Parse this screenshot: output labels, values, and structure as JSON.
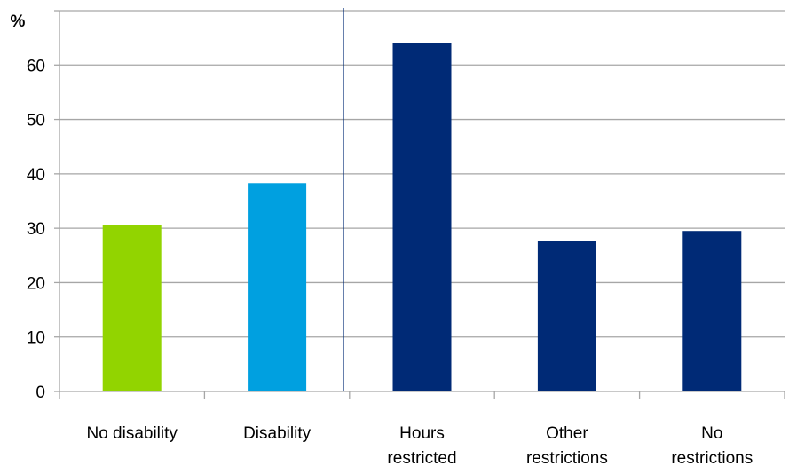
{
  "chart_data": {
    "type": "bar",
    "ylabel": "%",
    "ylim": [
      0,
      70
    ],
    "yticks": [
      0,
      10,
      20,
      30,
      40,
      50,
      60
    ],
    "grid": "horizontal",
    "categories": [
      [
        "No disability"
      ],
      [
        "Disability"
      ],
      [
        "Hours",
        "restricted"
      ],
      [
        "Other",
        "restrictions"
      ],
      [
        "No",
        "restrictions"
      ]
    ],
    "values": [
      30.6,
      38.3,
      64.0,
      27.6,
      29.5
    ],
    "colors": [
      "#92D400",
      "#00A0E0",
      "#002A76",
      "#002A76",
      "#002A76"
    ],
    "separator_after_category": 2,
    "separator_color": "#002A76",
    "grid_color": "#A6A6A6"
  }
}
